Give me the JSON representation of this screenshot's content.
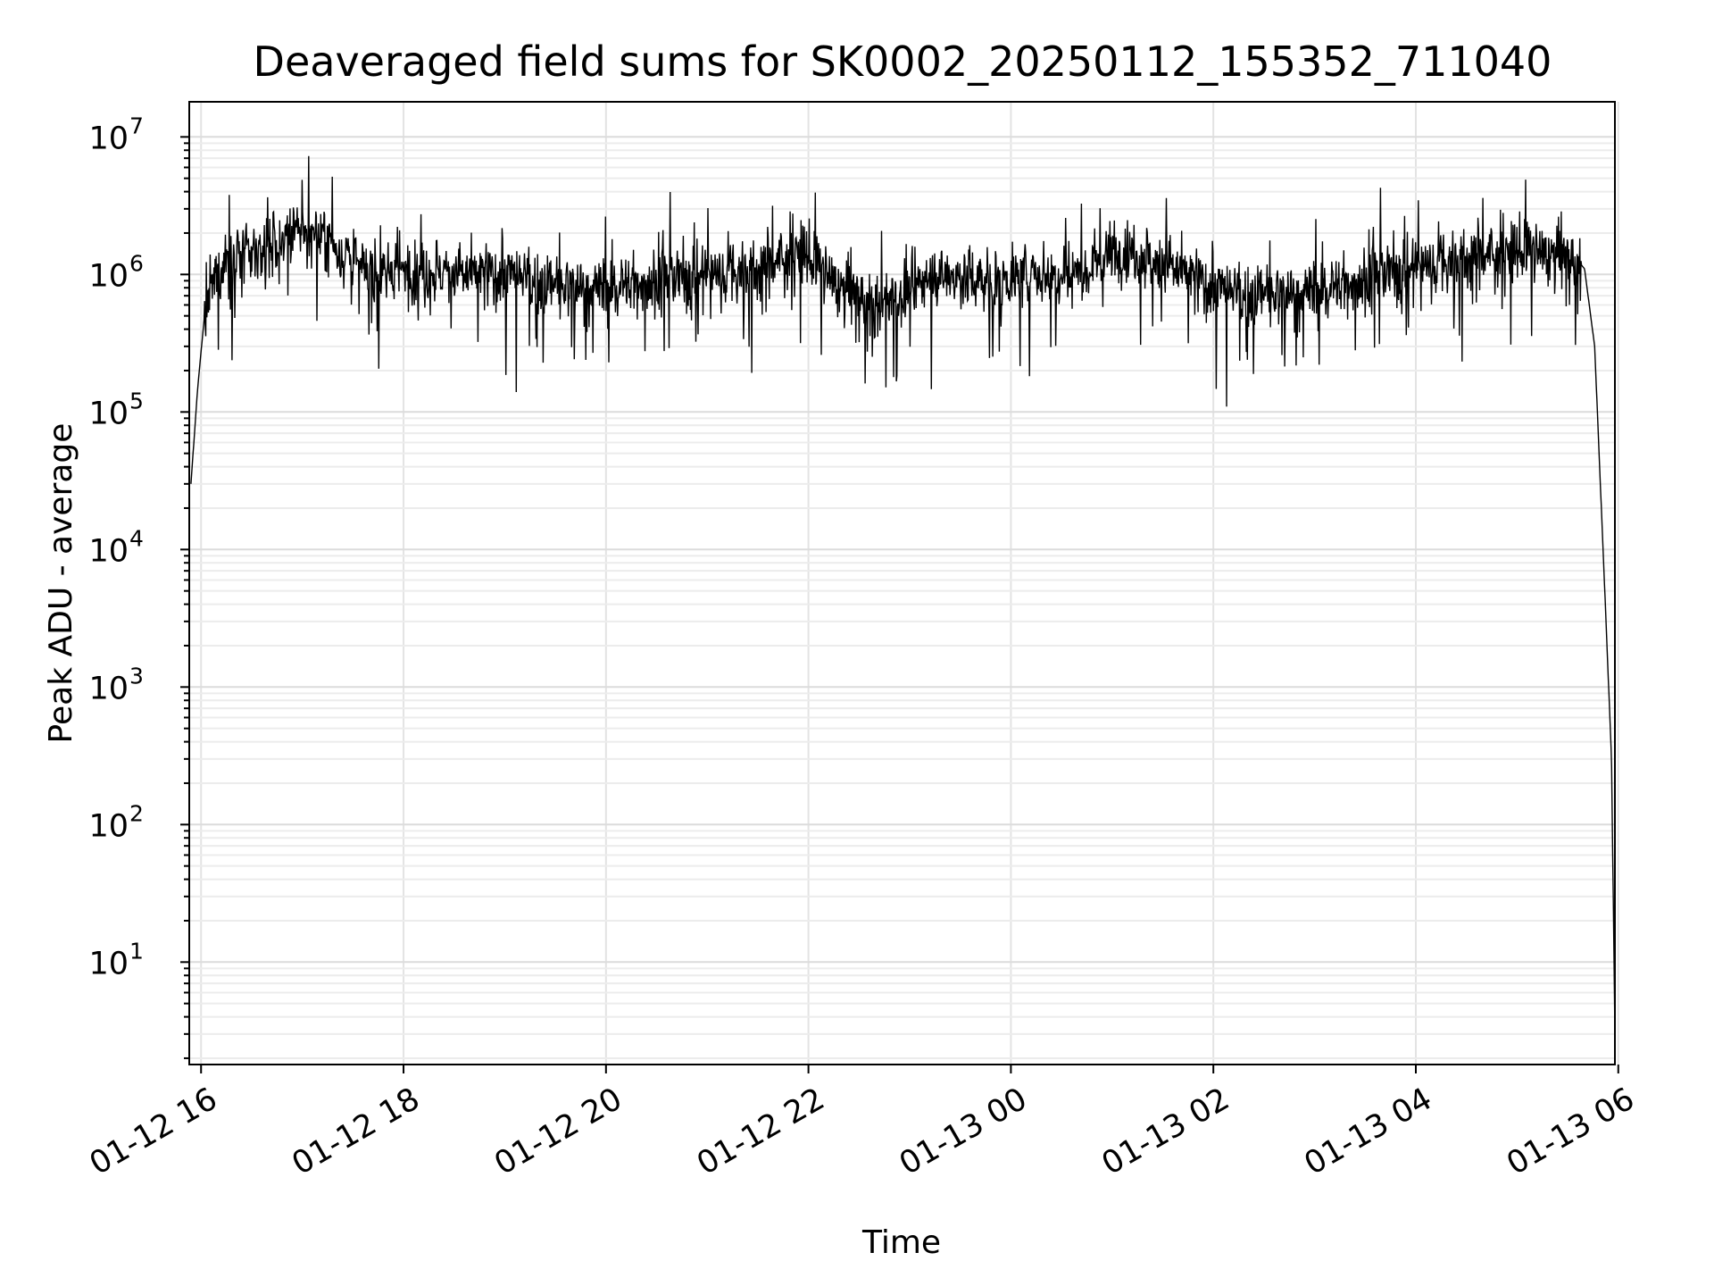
{
  "chart_data": {
    "type": "line",
    "title": "Deaveraged field sums for SK0002_20250112_155352_711040",
    "xlabel": "Time",
    "ylabel": "Peak ADU - average",
    "x_scale": "time",
    "y_scale": "log",
    "xlim": [
      "2025-01-12 15:53",
      "2025-01-13 05:58"
    ],
    "ylim": [
      1.8,
      18000000
    ],
    "grid": true,
    "x_ticks": [
      "01-12 16",
      "01-12 18",
      "01-12 20",
      "01-12 22",
      "01-13 00",
      "01-13 02",
      "01-13 04",
      "01-13 06"
    ],
    "y_ticks": [
      {
        "base": "10",
        "exp": "1",
        "value": 10
      },
      {
        "base": "10",
        "exp": "2",
        "value": 100
      },
      {
        "base": "10",
        "exp": "3",
        "value": 1000
      },
      {
        "base": "10",
        "exp": "4",
        "value": 10000
      },
      {
        "base": "10",
        "exp": "5",
        "value": 100000
      },
      {
        "base": "10",
        "exp": "6",
        "value": 1000000
      },
      {
        "base": "10",
        "exp": "7",
        "value": 10000000
      }
    ],
    "series": [
      {
        "color": "#000000",
        "x": [
          "2025-01-12 15:54",
          "2025-01-12 15:58",
          "2025-01-12 16:02",
          "2025-01-12 16:08",
          "2025-01-12 16:15",
          "2025-01-12 16:30",
          "2025-01-12 16:45",
          "2025-01-12 17:00",
          "2025-01-12 17:15",
          "2025-01-12 17:30",
          "2025-01-12 17:45",
          "2025-01-12 18:00",
          "2025-01-12 18:30",
          "2025-01-12 19:00",
          "2025-01-12 19:30",
          "2025-01-12 20:00",
          "2025-01-12 20:30",
          "2025-01-12 21:00",
          "2025-01-12 21:30",
          "2025-01-12 21:55",
          "2025-01-12 22:20",
          "2025-01-12 22:45",
          "2025-01-12 23:15",
          "2025-01-12 23:45",
          "2025-01-13 00:15",
          "2025-01-13 00:45",
          "2025-01-13 01:05",
          "2025-01-13 01:30",
          "2025-01-13 02:00",
          "2025-01-13 02:15",
          "2025-01-13 02:40",
          "2025-01-13 03:10",
          "2025-01-13 03:40",
          "2025-01-13 04:10",
          "2025-01-13 04:40",
          "2025-01-13 05:10",
          "2025-01-13 05:35",
          "2025-01-13 05:40",
          "2025-01-13 05:46",
          "2025-01-13 05:52",
          "2025-01-13 05:56",
          "2025-01-13 05:58"
        ],
        "y": [
          30000,
          150000,
          500000,
          900000,
          1300000,
          1400000,
          1600000,
          2000000,
          1800000,
          1200000,
          1000000,
          1100000,
          1000000,
          1000000,
          800000,
          800000,
          900000,
          1000000,
          1100000,
          1500000,
          800000,
          600000,
          1000000,
          900000,
          1000000,
          1100000,
          1600000,
          1200000,
          800000,
          700000,
          700000,
          800000,
          1000000,
          1200000,
          1400000,
          1500000,
          1300000,
          1100000,
          300000,
          5000,
          300,
          3
        ]
      }
    ]
  }
}
